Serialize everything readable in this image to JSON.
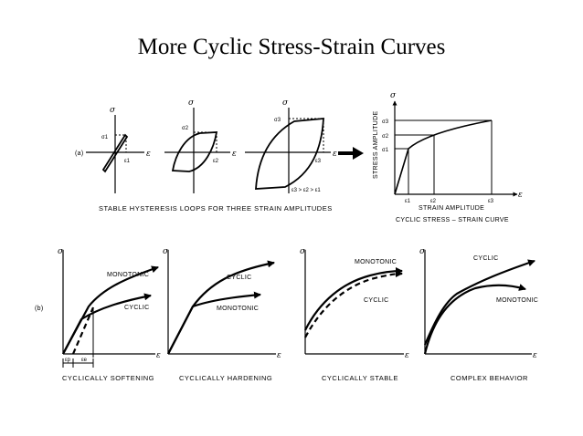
{
  "slide": {
    "title": "More Cyclic Stress-Strain Curves"
  },
  "part_a": {
    "label": "(a)",
    "axis_stress": "σ",
    "axis_strain": "ε",
    "loop1": {
      "stress_label": "σ1",
      "strain_label": "ε1"
    },
    "loop2": {
      "stress_label": "σ2",
      "strain_label": "ε2"
    },
    "loop3": {
      "stress_label": "σ3",
      "strain_label": "ε3"
    },
    "inequality": "ε3 > ε2 > ε1",
    "caption": "STABLE HYSTERESIS LOOPS FOR THREE STRAIN AMPLITUDES",
    "cyclic_curve": {
      "ylabel": "STRESS AMPLITUDE",
      "xlabel": "STRAIN AMPLITUDE",
      "caption": "CYCLIC STRESS – STRAIN CURVE",
      "y_ticks": [
        "σ3",
        "σ2",
        "σ1"
      ],
      "x_ticks": [
        "ε1",
        "ε2",
        "ε3"
      ]
    }
  },
  "part_b": {
    "label": "(b)",
    "panels": [
      {
        "caption": "CYCLICALLY SOFTENING",
        "upper": "MONOTONIC",
        "lower": "CYCLIC",
        "ep": "εp",
        "ee": "εe"
      },
      {
        "caption": "CYCLICALLY HARDENING",
        "upper": "CYCLIC",
        "lower": "MONOTONIC"
      },
      {
        "caption": "CYCLICALLY STABLE",
        "upper": "MONOTONIC",
        "lower": "CYCLIC"
      },
      {
        "caption": "COMPLEX BEHAVIOR",
        "upper": "CYCLIC",
        "lower": "MONOTONIC"
      }
    ]
  }
}
